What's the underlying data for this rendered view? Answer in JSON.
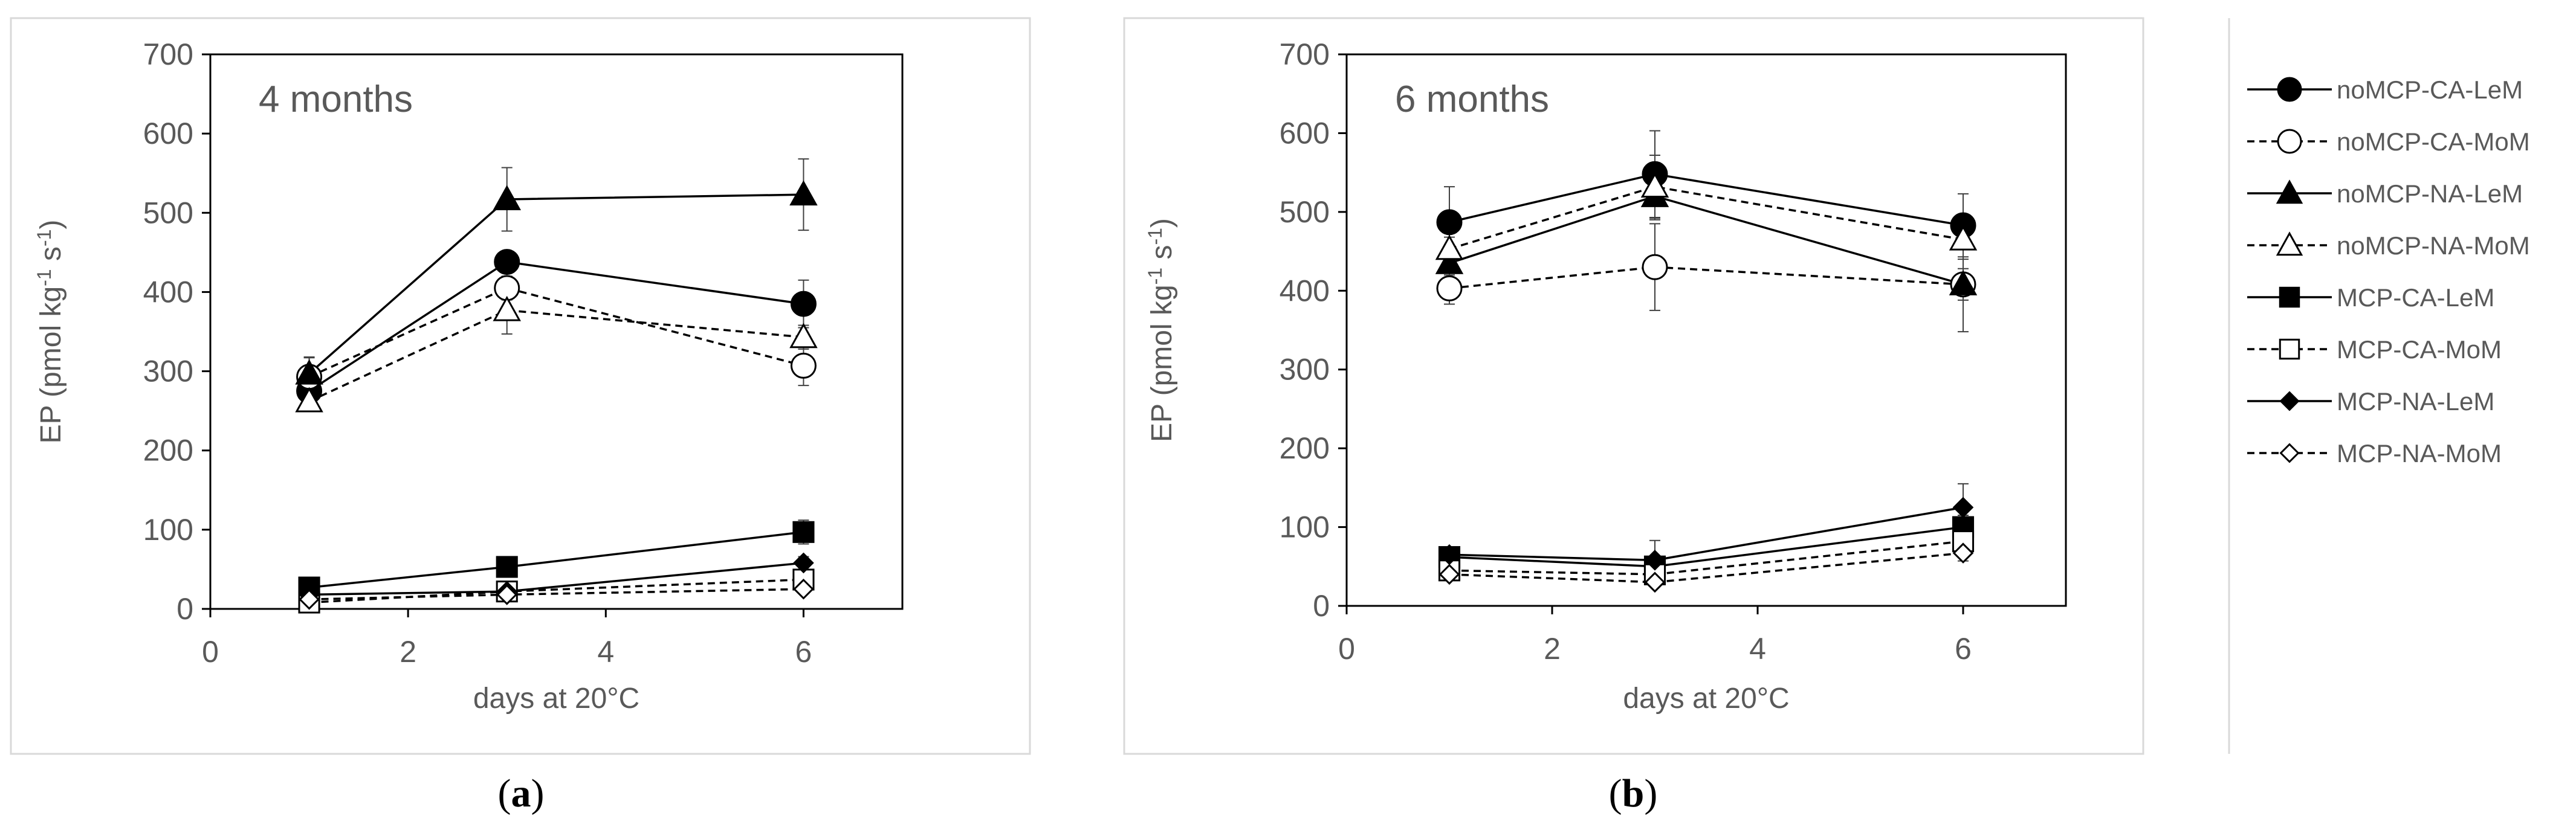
{
  "panel_tags": [
    "(a)",
    "(b)"
  ],
  "legend": {
    "entries": [
      {
        "label": "noMCP-CA-LeM",
        "marker": "circle",
        "filled": true,
        "dashed": false
      },
      {
        "label": "noMCP-CA-MoM",
        "marker": "circle",
        "filled": false,
        "dashed": true
      },
      {
        "label": "noMCP-NA-LeM",
        "marker": "triangle",
        "filled": true,
        "dashed": false
      },
      {
        "label": "noMCP-NA-MoM",
        "marker": "triangle",
        "filled": false,
        "dashed": true
      },
      {
        "label": "MCP-CA-LeM",
        "marker": "square",
        "filled": true,
        "dashed": false
      },
      {
        "label": "MCP-CA-MoM",
        "marker": "square",
        "filled": false,
        "dashed": true
      },
      {
        "label": "MCP-NA-LeM",
        "marker": "diamond",
        "filled": true,
        "dashed": false
      },
      {
        "label": "MCP-NA-MoM",
        "marker": "diamond",
        "filled": false,
        "dashed": true
      }
    ]
  },
  "chart_data": [
    {
      "type": "line",
      "title": "4 months",
      "xlabel": "days at 20°C",
      "ylabel": "EP (pmol kg",
      "ylabel_sup1": "-1",
      "ylabel_mid": " s",
      "ylabel_sup2": "-1",
      "ylabel_end": ")",
      "xlim": [
        0,
        7
      ],
      "ylim": [
        0,
        700
      ],
      "xticks": [
        0,
        2,
        4,
        6
      ],
      "yticks": [
        0,
        100,
        200,
        300,
        400,
        500,
        600,
        700
      ],
      "x": [
        1,
        3,
        6
      ],
      "grid": false,
      "series": [
        {
          "name": "noMCP-CA-LeM",
          "values": [
            275,
            438,
            385
          ],
          "errors": [
            15,
            10,
            30
          ]
        },
        {
          "name": "noMCP-CA-MoM",
          "values": [
            293,
            405,
            307
          ],
          "errors": [
            25,
            15,
            25
          ]
        },
        {
          "name": "noMCP-NA-LeM",
          "values": [
            297,
            517,
            523
          ],
          "errors": [
            20,
            40,
            45
          ]
        },
        {
          "name": "noMCP-NA-MoM",
          "values": [
            262,
            377,
            343
          ],
          "errors": [
            10,
            30,
            15
          ]
        },
        {
          "name": "MCP-CA-LeM",
          "values": [
            27,
            53,
            97
          ],
          "errors": [
            3,
            5,
            15
          ]
        },
        {
          "name": "MCP-CA-MoM",
          "values": [
            8,
            22,
            37
          ],
          "errors": [
            2,
            3,
            10
          ]
        },
        {
          "name": "MCP-NA-LeM",
          "values": [
            18,
            22,
            58
          ],
          "errors": [
            2,
            3,
            8
          ]
        },
        {
          "name": "MCP-NA-MoM",
          "values": [
            12,
            18,
            25
          ],
          "errors": [
            2,
            2,
            5
          ]
        }
      ]
    },
    {
      "type": "line",
      "title": "6 months",
      "xlabel": "days at 20°C",
      "ylabel": "EP (pmol kg",
      "ylabel_sup1": "-1",
      "ylabel_mid": " s",
      "ylabel_sup2": "-1",
      "ylabel_end": ")",
      "xlim": [
        0,
        7
      ],
      "ylim": [
        0,
        700
      ],
      "xticks": [
        0,
        2,
        4,
        6
      ],
      "yticks": [
        0,
        100,
        200,
        300,
        400,
        500,
        600,
        700
      ],
      "x": [
        1,
        3,
        6
      ],
      "grid": false,
      "series": [
        {
          "name": "noMCP-CA-LeM",
          "values": [
            487,
            548,
            483
          ],
          "errors": [
            45,
            55,
            40
          ]
        },
        {
          "name": "noMCP-CA-MoM",
          "values": [
            403,
            430,
            408
          ],
          "errors": [
            20,
            55,
            60
          ]
        },
        {
          "name": "noMCP-NA-LeM",
          "values": [
            435,
            520,
            408
          ],
          "errors": [
            15,
            30,
            20
          ]
        },
        {
          "name": "noMCP-NA-MoM",
          "values": [
            453,
            532,
            465
          ],
          "errors": [
            15,
            40,
            25
          ]
        },
        {
          "name": "MCP-CA-LeM",
          "values": [
            62,
            50,
            100
          ],
          "errors": [
            10,
            10,
            15
          ]
        },
        {
          "name": "MCP-CA-MoM",
          "values": [
            45,
            40,
            82
          ],
          "errors": [
            5,
            8,
            10
          ]
        },
        {
          "name": "MCP-NA-LeM",
          "values": [
            65,
            58,
            125
          ],
          "errors": [
            8,
            25,
            30
          ]
        },
        {
          "name": "MCP-NA-MoM",
          "values": [
            40,
            30,
            67
          ],
          "errors": [
            5,
            5,
            10
          ]
        }
      ]
    }
  ]
}
